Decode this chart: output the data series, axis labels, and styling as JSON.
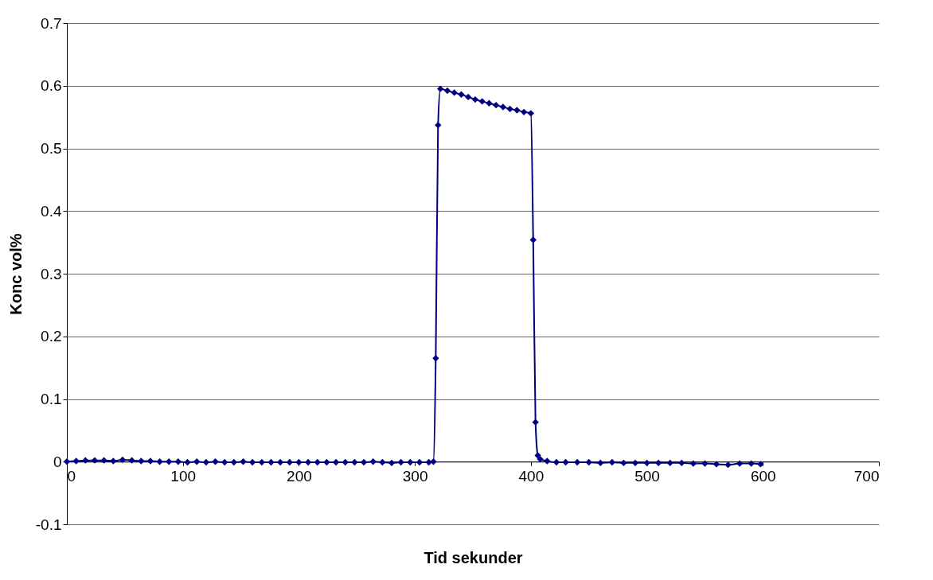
{
  "chart_data": {
    "type": "line",
    "xlabel": "Tid sekunder",
    "ylabel": "Konc vol%",
    "x": [
      0,
      8,
      16,
      24,
      32,
      40,
      48,
      56,
      64,
      72,
      80,
      88,
      96,
      104,
      112,
      120,
      128,
      136,
      144,
      152,
      160,
      168,
      176,
      184,
      192,
      200,
      208,
      216,
      224,
      232,
      240,
      248,
      256,
      264,
      272,
      280,
      288,
      296,
      304,
      312,
      316,
      318,
      320,
      322,
      328,
      334,
      340,
      346,
      352,
      358,
      364,
      370,
      376,
      382,
      388,
      394,
      400,
      402,
      404,
      406,
      408,
      414,
      422,
      430,
      440,
      450,
      460,
      470,
      480,
      490,
      500,
      510,
      520,
      530,
      540,
      550,
      560,
      570,
      580,
      590,
      598
    ],
    "series": [
      {
        "color": "#000080",
        "values": [
          0,
          0.001,
          0.002,
          0.002,
          0.002,
          0.001,
          0.003,
          0.002,
          0.001,
          0.001,
          0,
          0,
          0,
          -0.001,
          0,
          -0.001,
          0,
          -0.001,
          -0.001,
          0,
          -0.001,
          -0.001,
          -0.001,
          -0.001,
          -0.001,
          -0.001,
          -0.001,
          -0.001,
          -0.001,
          -0.001,
          -0.001,
          -0.001,
          -0.001,
          0,
          -0.001,
          -0.002,
          -0.001,
          -0.001,
          -0.001,
          -0.001,
          0,
          0.165,
          0.537,
          0.595,
          0.592,
          0.589,
          0.586,
          0.582,
          0.578,
          0.575,
          0.572,
          0.569,
          0.566,
          0.563,
          0.561,
          0.558,
          0.556,
          0.354,
          0.063,
          0.01,
          0.004,
          0.001,
          -0.001,
          -0.001,
          -0.001,
          -0.001,
          -0.002,
          -0.001,
          -0.002,
          -0.002,
          -0.002,
          -0.002,
          -0.002,
          -0.002,
          -0.003,
          -0.003,
          -0.004,
          -0.005,
          -0.003,
          -0.003,
          -0.004
        ]
      }
    ],
    "xlim": [
      0,
      700
    ],
    "xticks": [
      0,
      100,
      200,
      300,
      400,
      500,
      600,
      700
    ],
    "ylim": [
      -0.1,
      0.7
    ],
    "yticks": [
      -0.1,
      0,
      0.1,
      0.2,
      0.3,
      0.4,
      0.5,
      0.6,
      0.7
    ],
    "grid": "y",
    "marker": "diamond",
    "line_style": "solid"
  }
}
